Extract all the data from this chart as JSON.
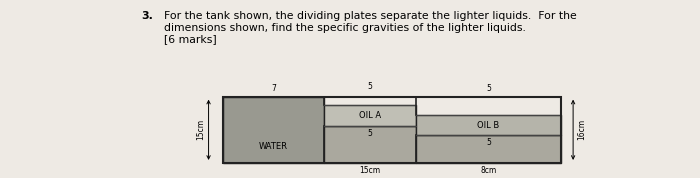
{
  "title_num": "3.",
  "title_text": "For the tank shown, the dividing plates separate the lighter liquids.  For the",
  "title_text2": "dimensions shown, find the specific gravities of the lighter liquids.",
  "title_text3": "[6 marks]",
  "paper_color": "#eeeae4",
  "water_color": "#999990",
  "oil_a_color": "#c0bfb5",
  "oil_b_color": "#b5b4aa",
  "water_lower_color": "#aaa89e",
  "labels": {
    "water": "WATER",
    "oil_a": "OIL A",
    "oil_b": "OIL B"
  },
  "dims": {
    "left_height": "15cm",
    "right_height": "16cm",
    "water_width_label": "15cm",
    "bottom_right_dim": "8cm",
    "top_w1": "7",
    "top_w2": "5",
    "top_w3": "5",
    "mid_oilA": "5",
    "mid_oilB": "5"
  }
}
